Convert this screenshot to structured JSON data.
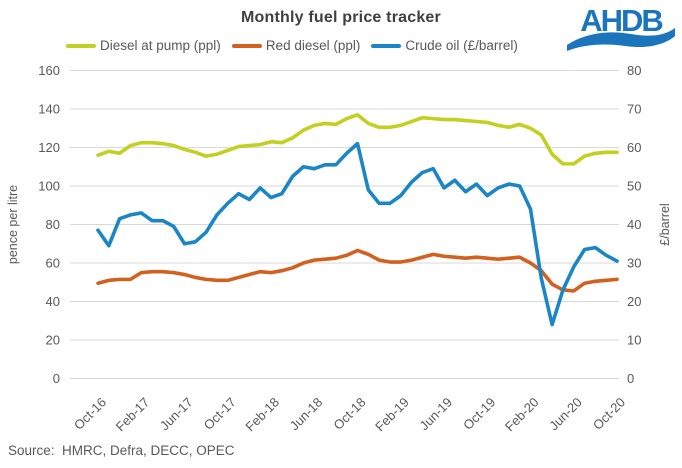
{
  "title": "Monthly fuel price tracker",
  "logo": {
    "text": "AHDB",
    "color": "#1b75bc"
  },
  "source": "Source:  HMRC, Defra, DECC, OPEC",
  "chart_data": {
    "type": "line",
    "grid": true,
    "grid_color": "#d9d9d9",
    "legend_position": "top",
    "tick_every": 4,
    "x": [
      "Oct-16",
      "Nov-16",
      "Dec-16",
      "Jan-17",
      "Feb-17",
      "Mar-17",
      "Apr-17",
      "May-17",
      "Jun-17",
      "Jul-17",
      "Aug-17",
      "Sep-17",
      "Oct-17",
      "Nov-17",
      "Dec-17",
      "Jan-18",
      "Feb-18",
      "Mar-18",
      "Apr-18",
      "May-18",
      "Jun-18",
      "Jul-18",
      "Aug-18",
      "Sep-18",
      "Oct-18",
      "Nov-18",
      "Dec-18",
      "Jan-19",
      "Feb-19",
      "Mar-19",
      "Apr-19",
      "May-19",
      "Jun-19",
      "Jul-19",
      "Aug-19",
      "Sep-19",
      "Oct-19",
      "Nov-19",
      "Dec-19",
      "Jan-20",
      "Feb-20",
      "Mar-20",
      "Apr-20",
      "May-20",
      "Jun-20",
      "Jul-20",
      "Aug-20",
      "Sep-20",
      "Oct-20"
    ],
    "left_axis": {
      "label": "pence per litre",
      "min": 0,
      "max": 160,
      "step": 20
    },
    "right_axis": {
      "label": "£/barrel",
      "min": 0,
      "max": 80,
      "step": 10
    },
    "series": [
      {
        "name": "Diesel at pump (ppl)",
        "axis": "left",
        "color": "#c3d021",
        "values": [
          116,
          118,
          117,
          121,
          122.5,
          122.5,
          122,
          121,
          119,
          117.5,
          115.5,
          116.5,
          118.5,
          120.5,
          121,
          121.5,
          123,
          122.5,
          125,
          129,
          131.5,
          132.5,
          132,
          135,
          137,
          132.5,
          130.5,
          130.5,
          131.5,
          133.5,
          135.5,
          135,
          134.5,
          134.5,
          134,
          133.5,
          133,
          131.5,
          130.5,
          132,
          130,
          126.5,
          116.5,
          111.5,
          111.5,
          115.5,
          117,
          117.5,
          117.5
        ]
      },
      {
        "name": "Red diesel (ppl)",
        "axis": "left",
        "color": "#d2611f",
        "values": [
          49.5,
          51,
          51.5,
          51.5,
          55,
          55.5,
          55.5,
          55,
          54,
          52.5,
          51.5,
          51,
          51,
          52.5,
          54,
          55.5,
          55,
          56,
          57.5,
          60,
          61.5,
          62,
          62.5,
          64,
          66.5,
          64.5,
          61.5,
          60.5,
          60.5,
          61.5,
          63,
          64.5,
          63.5,
          63,
          62.5,
          63,
          62.5,
          62,
          62.5,
          63,
          60,
          56,
          49,
          46,
          45.5,
          49.5,
          50.5,
          51,
          51.5
        ]
      },
      {
        "name": "Crude oil (£/barrel)",
        "axis": "right",
        "color": "#1a86c8",
        "values": [
          38.5,
          34.5,
          41.5,
          42.5,
          43,
          41,
          41,
          39.5,
          35,
          35.5,
          38,
          42.5,
          45.5,
          48,
          46.5,
          49.5,
          47,
          48,
          52.5,
          55,
          54.5,
          55.5,
          55.5,
          58.5,
          61,
          49,
          45.5,
          45.5,
          47.5,
          51,
          53.5,
          54.5,
          49.5,
          51.5,
          48.5,
          50.5,
          47.5,
          49.5,
          50.5,
          50,
          44,
          26,
          14,
          23,
          29,
          33.5,
          34,
          32,
          30.5
        ]
      }
    ]
  }
}
